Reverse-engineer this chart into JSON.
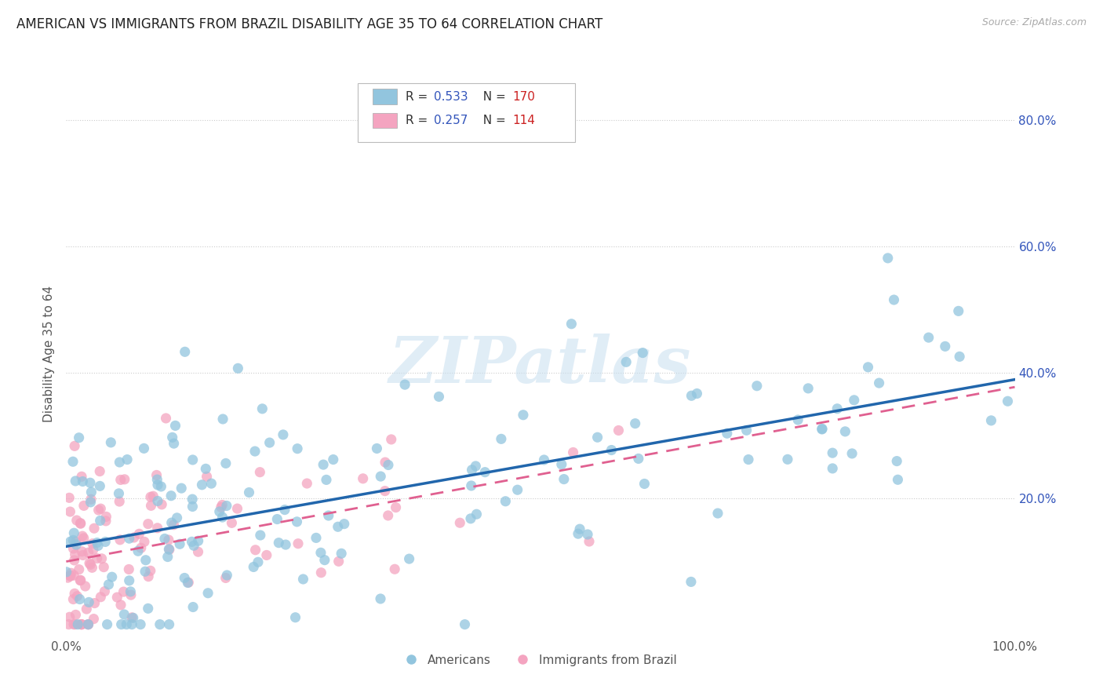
{
  "title": "AMERICAN VS IMMIGRANTS FROM BRAZIL DISABILITY AGE 35 TO 64 CORRELATION CHART",
  "source": "Source: ZipAtlas.com",
  "ylabel": "Disability Age 35 to 64",
  "xlabel": "",
  "xlim": [
    0.0,
    1.0
  ],
  "ylim": [
    -0.02,
    0.88
  ],
  "xticks": [
    0.0,
    0.2,
    0.4,
    0.6,
    0.8,
    1.0
  ],
  "xtick_labels": [
    "0.0%",
    "",
    "",
    "",
    "",
    "100.0%"
  ],
  "yticks": [
    0.2,
    0.4,
    0.6,
    0.8
  ],
  "ytick_labels": [
    "20.0%",
    "40.0%",
    "60.0%",
    "80.0%"
  ],
  "blue_color": "#92c5de",
  "pink_color": "#f4a4c0",
  "blue_line_color": "#2166ac",
  "pink_line_color": "#e06090",
  "R_blue": 0.533,
  "N_blue": 170,
  "R_pink": 0.257,
  "N_pink": 114,
  "legend_R_color": "#3355bb",
  "legend_N_color": "#cc2222",
  "watermark": "ZIPatlas",
  "legend_label_blue": "Americans",
  "legend_label_pink": "Immigrants from Brazil",
  "background_color": "#ffffff",
  "grid_color": "#cccccc",
  "title_fontsize": 12,
  "axis_fontsize": 11,
  "tick_fontsize": 11,
  "blue_intercept": 0.13,
  "blue_slope": 0.25,
  "pink_intercept": 0.1,
  "pink_slope": 0.3
}
